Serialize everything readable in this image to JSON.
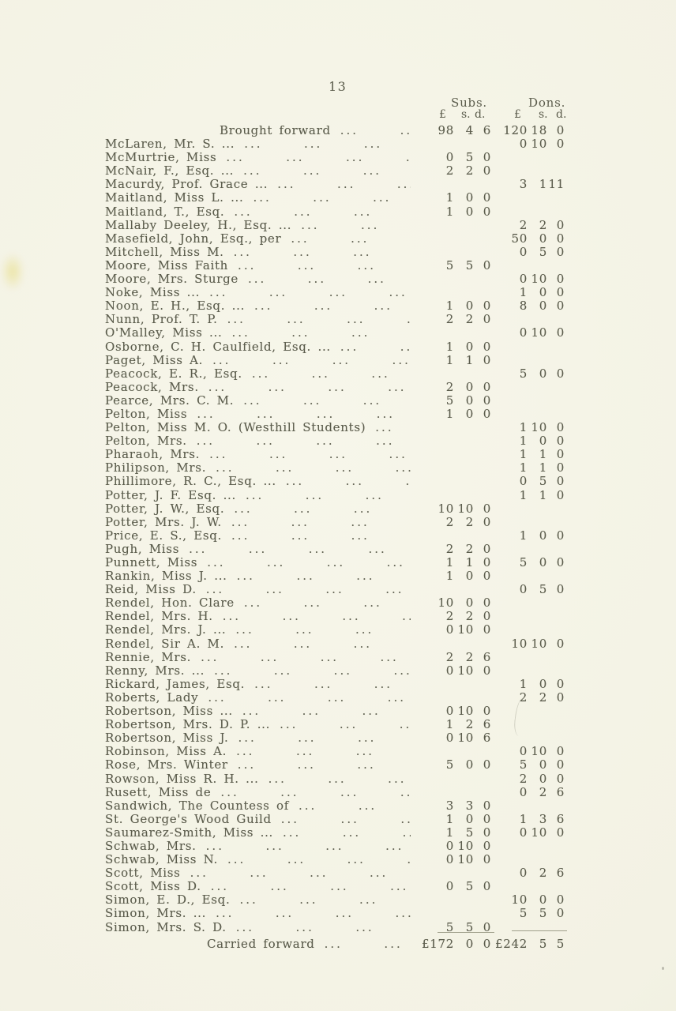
{
  "page_number": "13",
  "header": {
    "subs_label": "Subs.",
    "dons_label": "Dons.",
    "subs_cols": [
      "£",
      "s.",
      "d."
    ],
    "dons_cols": [
      "£",
      "s.",
      "d."
    ]
  },
  "table": {
    "brought_forward": {
      "label": "Brought forward",
      "subs": [
        "98",
        "4",
        "6"
      ],
      "dons": [
        "120",
        "18",
        "0"
      ]
    },
    "rows": [
      {
        "name": "McLaren, Mr. S. ...",
        "subs": null,
        "dons": [
          "0",
          "10",
          "0"
        ]
      },
      {
        "name": "McMurtrie, Miss",
        "subs": [
          "0",
          "5",
          "0"
        ],
        "dons": null
      },
      {
        "name": "McNair, F., Esq. ...",
        "subs": [
          "2",
          "2",
          "0"
        ],
        "dons": null
      },
      {
        "name": "Macurdy, Prof. Grace ...",
        "subs": null,
        "dons": [
          "3",
          "1",
          "11"
        ]
      },
      {
        "name": "Maitland, Miss L. ...",
        "subs": [
          "1",
          "0",
          "0"
        ],
        "dons": null
      },
      {
        "name": "Maitland, T., Esq.",
        "subs": [
          "1",
          "0",
          "0"
        ],
        "dons": null
      },
      {
        "name": "Mallaby Deeley, H., Esq. ...",
        "subs": null,
        "dons": [
          "2",
          "2",
          "0"
        ]
      },
      {
        "name": "Masefield, John, Esq., per",
        "subs": null,
        "dons": [
          "50",
          "0",
          "0"
        ]
      },
      {
        "name": "Mitchell, Miss M.",
        "subs": null,
        "dons": [
          "0",
          "5",
          "0"
        ]
      },
      {
        "name": "Moore, Miss Faith",
        "subs": [
          "5",
          "5",
          "0"
        ],
        "dons": null
      },
      {
        "name": "Moore, Mrs. Sturge",
        "subs": null,
        "dons": [
          "0",
          "10",
          "0"
        ]
      },
      {
        "name": "Noke, Miss ...",
        "subs": null,
        "dons": [
          "1",
          "0",
          "0"
        ]
      },
      {
        "name": "Noon, E. H., Esq. ...",
        "subs": [
          "1",
          "0",
          "0"
        ],
        "dons": [
          "8",
          "0",
          "0"
        ]
      },
      {
        "name": "Nunn, Prof. T. P.",
        "subs": [
          "2",
          "2",
          "0"
        ],
        "dons": null
      },
      {
        "name": "O'Malley, Miss ...",
        "subs": null,
        "dons": [
          "0",
          "10",
          "0"
        ]
      },
      {
        "name": "Osborne, C. H. Caulfield, Esq. ...",
        "subs": [
          "1",
          "0",
          "0"
        ],
        "dons": null
      },
      {
        "name": "Paget, Miss A.",
        "subs": [
          "1",
          "1",
          "0"
        ],
        "dons": null
      },
      {
        "name": "Peacock, E. R., Esq.",
        "subs": null,
        "dons": [
          "5",
          "0",
          "0"
        ]
      },
      {
        "name": "Peacock, Mrs.",
        "subs": [
          "2",
          "0",
          "0"
        ],
        "dons": null
      },
      {
        "name": "Pearce, Mrs. C. M.",
        "subs": [
          "5",
          "0",
          "0"
        ],
        "dons": null
      },
      {
        "name": "Pelton, Miss",
        "subs": [
          "1",
          "0",
          "0"
        ],
        "dons": null
      },
      {
        "name": "Pelton, Miss M. O. (Westhill Students)",
        "subs": null,
        "dons": [
          "1",
          "10",
          "0"
        ]
      },
      {
        "name": "Pelton, Mrs.",
        "subs": null,
        "dons": [
          "1",
          "0",
          "0"
        ]
      },
      {
        "name": "Pharaoh, Mrs.",
        "subs": null,
        "dons": [
          "1",
          "1",
          "0"
        ]
      },
      {
        "name": "Philipson, Mrs.",
        "subs": null,
        "dons": [
          "1",
          "1",
          "0"
        ]
      },
      {
        "name": "Phillimore, R. C., Esq. ...",
        "subs": null,
        "dons": [
          "0",
          "5",
          "0"
        ]
      },
      {
        "name": "Potter, J. F. Esq. ...",
        "subs": null,
        "dons": [
          "1",
          "1",
          "0"
        ]
      },
      {
        "name": "Potter, J. W., Esq.",
        "subs": [
          "10",
          "10",
          "0"
        ],
        "dons": null
      },
      {
        "name": "Potter, Mrs. J. W.",
        "subs": [
          "2",
          "2",
          "0"
        ],
        "dons": null
      },
      {
        "name": "Price, E. S., Esq.",
        "subs": null,
        "dons": [
          "1",
          "0",
          "0"
        ]
      },
      {
        "name": "Pugh, Miss",
        "subs": [
          "2",
          "2",
          "0"
        ],
        "dons": null
      },
      {
        "name": "Punnett, Miss",
        "subs": [
          "1",
          "1",
          "0"
        ],
        "dons": [
          "5",
          "0",
          "0"
        ]
      },
      {
        "name": "Rankin, Miss J. ...",
        "subs": [
          "1",
          "0",
          "0"
        ],
        "dons": null
      },
      {
        "name": "Reid, Miss D.",
        "subs": null,
        "dons": [
          "0",
          "5",
          "0"
        ]
      },
      {
        "name": "Rendel, Hon. Clare",
        "subs": [
          "10",
          "0",
          "0"
        ],
        "dons": null
      },
      {
        "name": "Rendel, Mrs. H.",
        "subs": [
          "2",
          "2",
          "0"
        ],
        "dons": null
      },
      {
        "name": "Rendel, Mrs. J. ...",
        "subs": [
          "0",
          "10",
          "0"
        ],
        "dons": null
      },
      {
        "name": "Rendel, Sir A. M.",
        "subs": null,
        "dons": [
          "10",
          "10",
          "0"
        ]
      },
      {
        "name": "Rennie, Mrs.",
        "subs": [
          "2",
          "2",
          "6"
        ],
        "dons": null
      },
      {
        "name": "Renny, Mrs. ...",
        "subs": [
          "0",
          "10",
          "0"
        ],
        "dons": null
      },
      {
        "name": "Rickard, James, Esq.",
        "subs": null,
        "dons": [
          "1",
          "0",
          "0"
        ]
      },
      {
        "name": "Roberts, Lady",
        "subs": null,
        "dons": [
          "2",
          "2",
          "0"
        ]
      },
      {
        "name": "Robertson, Miss ...",
        "subs": [
          "0",
          "10",
          "0"
        ],
        "dons": null
      },
      {
        "name": "Robertson, Mrs. D. P. ...",
        "subs": [
          "1",
          "2",
          "6"
        ],
        "dons": null
      },
      {
        "name": "Robertson, Miss J.",
        "subs": [
          "0",
          "10",
          "6"
        ],
        "dons": null
      },
      {
        "name": "Robinson, Miss A.",
        "subs": null,
        "dons": [
          "0",
          "10",
          "0"
        ]
      },
      {
        "name": "Rose, Mrs. Winter",
        "subs": [
          "5",
          "0",
          "0"
        ],
        "dons": [
          "5",
          "0",
          "0"
        ]
      },
      {
        "name": "Rowson, Miss R. H. ...",
        "subs": null,
        "dons": [
          "2",
          "0",
          "0"
        ]
      },
      {
        "name": "Rusett, Miss de",
        "subs": null,
        "dons": [
          "0",
          "2",
          "6"
        ]
      },
      {
        "name": "Sandwich, The Countess of",
        "subs": [
          "3",
          "3",
          "0"
        ],
        "dons": null
      },
      {
        "name": "St. George's Wood Guild",
        "subs": [
          "1",
          "0",
          "0"
        ],
        "dons": [
          "1",
          "3",
          "6"
        ]
      },
      {
        "name": "Saumarez-Smith, Miss ...",
        "subs": [
          "1",
          "5",
          "0"
        ],
        "dons": [
          "0",
          "10",
          "0"
        ]
      },
      {
        "name": "Schwab, Mrs.",
        "subs": [
          "0",
          "10",
          "0"
        ],
        "dons": null
      },
      {
        "name": "Schwab, Miss N.",
        "subs": [
          "0",
          "10",
          "0"
        ],
        "dons": null
      },
      {
        "name": "Scott, Miss",
        "subs": null,
        "dons": [
          "0",
          "2",
          "6"
        ]
      },
      {
        "name": "Scott, Miss D.",
        "subs": [
          "0",
          "5",
          "0"
        ],
        "dons": null
      },
      {
        "name": "Simon, E. D., Esq.",
        "subs": null,
        "dons": [
          "10",
          "0",
          "0"
        ]
      },
      {
        "name": "Simon, Mrs. ...",
        "subs": null,
        "dons": [
          "5",
          "5",
          "0"
        ]
      },
      {
        "name": "Simon, Mrs. S. D.",
        "subs": [
          "5",
          "5",
          "0"
        ],
        "dons": null
      }
    ],
    "carried_forward": {
      "label": "Carried forward",
      "subs": [
        "£172",
        "0",
        "0"
      ],
      "dons": [
        "£242",
        "5",
        "5"
      ]
    }
  },
  "colors": {
    "paper": "#f3f2e4",
    "ink": "#5b5c4c"
  }
}
